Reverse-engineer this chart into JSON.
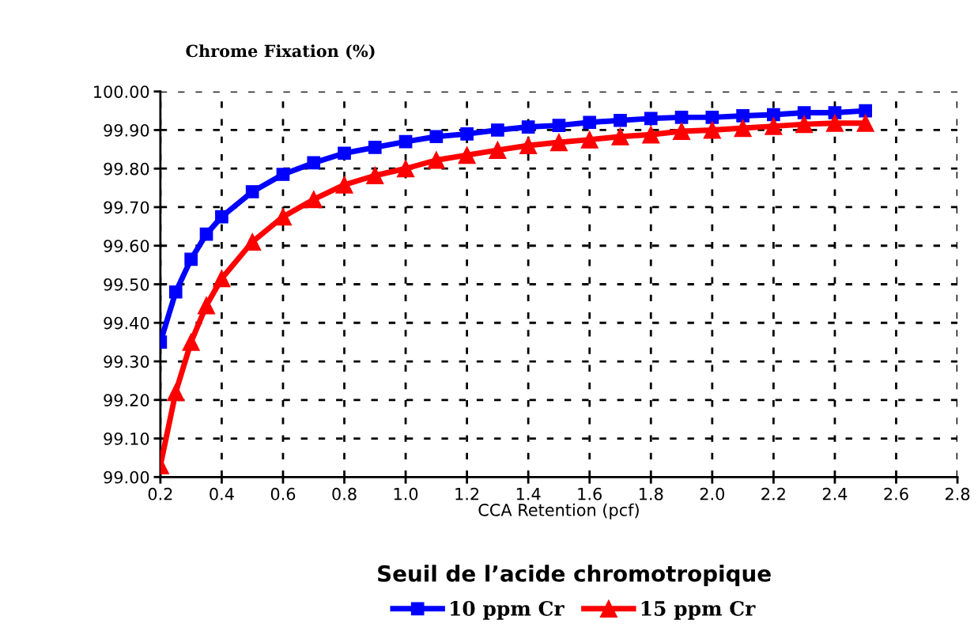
{
  "chart_data": {
    "type": "line",
    "title": "Seuil de l’acide chromotropique",
    "xlabel": "CCA Retention (pcf)",
    "ylabel": "Chrome Fixation (%)",
    "x": [
      0.2,
      0.25,
      0.3,
      0.35,
      0.4,
      0.5,
      0.6,
      0.7,
      0.8,
      0.9,
      1.0,
      1.1,
      1.2,
      1.3,
      1.4,
      1.5,
      1.6,
      1.7,
      1.8,
      1.9,
      2.0,
      2.1,
      2.2,
      2.3,
      2.4,
      2.5
    ],
    "series": [
      {
        "name": "10 ppm Cr",
        "color": "#0000ff",
        "marker": "square",
        "values": [
          99.35,
          99.48,
          99.565,
          99.63,
          99.675,
          99.74,
          99.785,
          99.815,
          99.84,
          99.855,
          99.87,
          99.883,
          99.89,
          99.9,
          99.908,
          99.912,
          99.92,
          99.925,
          99.93,
          99.933,
          99.933,
          99.937,
          99.94,
          99.945,
          99.945,
          99.95
        ]
      },
      {
        "name": "15 ppm Cr",
        "color": "#ff0000",
        "marker": "triangle",
        "values": [
          99.03,
          99.22,
          99.35,
          99.445,
          99.515,
          99.61,
          99.675,
          99.72,
          99.758,
          99.782,
          99.8,
          99.822,
          99.835,
          99.848,
          99.86,
          99.868,
          99.875,
          99.883,
          99.888,
          99.897,
          99.9,
          99.905,
          99.91,
          99.915,
          99.918,
          99.918
        ]
      }
    ],
    "xlim": [
      0.2,
      2.8
    ],
    "xticks": [
      0.2,
      0.4,
      0.6,
      0.8,
      {
        "value": 1,
        "label": "1.0"
      },
      1.2,
      1.4,
      1.6,
      1.8,
      {
        "value": 2,
        "label": "2.0"
      },
      2.2,
      2.4,
      2.6,
      2.8
    ],
    "ylim": [
      99.0,
      100.0
    ],
    "yticks": [
      {
        "value": 99.0,
        "label": "99.00"
      },
      {
        "value": 99.1,
        "label": "99.10"
      },
      {
        "value": 99.2,
        "label": "99.20"
      },
      {
        "value": 99.3,
        "label": "99.30"
      },
      {
        "value": 99.4,
        "label": "99.40"
      },
      {
        "value": 99.5,
        "label": "99.50"
      },
      {
        "value": 99.6,
        "label": "99.60"
      },
      {
        "value": 99.7,
        "label": "99.70"
      },
      {
        "value": 99.8,
        "label": "99.80"
      },
      {
        "value": 99.9,
        "label": "99.90"
      },
      {
        "value": 100.0,
        "label": "100.00"
      }
    ],
    "grid": true,
    "legend": "bottom",
    "line_style": "solid"
  }
}
